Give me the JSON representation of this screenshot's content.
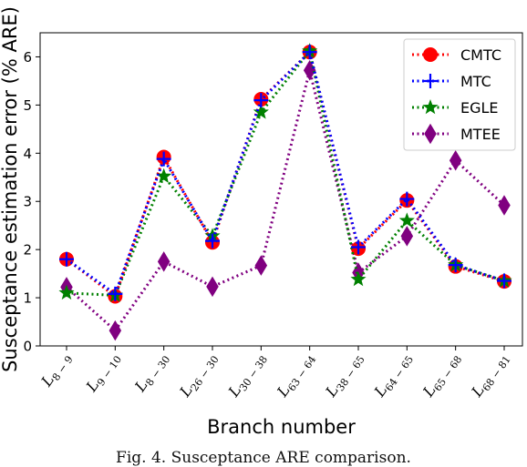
{
  "chart_data": {
    "type": "line",
    "xlabel": "Branch number",
    "ylabel": "Susceptance estimation error (% ARE)",
    "ylim": [
      0,
      6.5
    ],
    "yticks": [
      0,
      1,
      2,
      3,
      4,
      5,
      6
    ],
    "grid": false,
    "legend_position": "top-right",
    "categories": [
      {
        "base": "L",
        "sub": "8 − 9"
      },
      {
        "base": "L",
        "sub": "9 − 10"
      },
      {
        "base": "L",
        "sub": "8 − 30"
      },
      {
        "base": "L",
        "sub": "26 − 30"
      },
      {
        "base": "L",
        "sub": "30 − 38"
      },
      {
        "base": "L",
        "sub": "63 − 64"
      },
      {
        "base": "L",
        "sub": "38 − 65"
      },
      {
        "base": "L",
        "sub": "64 − 65"
      },
      {
        "base": "L",
        "sub": "65 − 68"
      },
      {
        "base": "L",
        "sub": "68 − 81"
      }
    ],
    "series": [
      {
        "name": "CMTC",
        "color": "#ff0000",
        "marker": "circle",
        "values": [
          1.8,
          1.03,
          3.92,
          2.15,
          5.12,
          6.1,
          2.02,
          3.02,
          1.65,
          1.34
        ]
      },
      {
        "name": "MTC",
        "color": "#0000ff",
        "marker": "plus",
        "values": [
          1.8,
          1.08,
          3.88,
          2.18,
          5.1,
          6.1,
          2.05,
          3.05,
          1.68,
          1.35
        ]
      },
      {
        "name": "EGLE",
        "color": "#008000",
        "marker": "star",
        "values": [
          1.1,
          1.05,
          3.52,
          2.28,
          4.85,
          6.12,
          1.38,
          2.6,
          1.68,
          1.35
        ]
      },
      {
        "name": "MTEE",
        "color": "#800080",
        "marker": "diamond",
        "values": [
          1.22,
          0.32,
          1.75,
          1.23,
          1.67,
          5.72,
          1.52,
          2.28,
          3.85,
          2.92
        ]
      }
    ]
  },
  "caption": "Fig. 4.   Susceptance ARE comparison."
}
